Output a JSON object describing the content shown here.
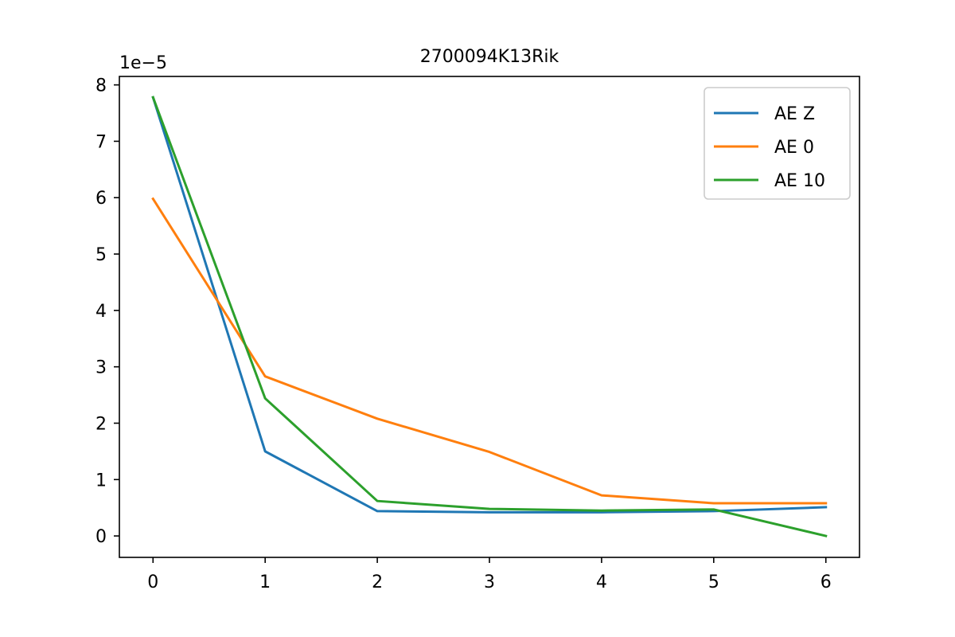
{
  "chart_data": {
    "type": "line",
    "title": "2700094K13Rik",
    "xlabel": "",
    "ylabel": "",
    "y_offset_label": "1e−5",
    "x": [
      0,
      1,
      2,
      3,
      4,
      5,
      6
    ],
    "xlim": [
      -0.3,
      6.3
    ],
    "ylim": [
      -0.38,
      8.15
    ],
    "xticks": [
      0,
      1,
      2,
      3,
      4,
      5,
      6
    ],
    "yticks": [
      0,
      1,
      2,
      3,
      4,
      5,
      6,
      7,
      8
    ],
    "grid": false,
    "legend_position": "top-right",
    "series": [
      {
        "name": "AE Z",
        "color": "#1f77b4",
        "values": [
          7.78,
          1.5,
          0.44,
          0.42,
          0.42,
          0.44,
          0.51
        ]
      },
      {
        "name": "AE 0",
        "color": "#ff7f0e",
        "values": [
          5.98,
          2.83,
          2.08,
          1.49,
          0.72,
          0.58,
          0.58
        ]
      },
      {
        "name": "AE 10",
        "color": "#2ca02c",
        "values": [
          7.78,
          2.44,
          0.62,
          0.48,
          0.45,
          0.47,
          0.0
        ]
      }
    ]
  }
}
